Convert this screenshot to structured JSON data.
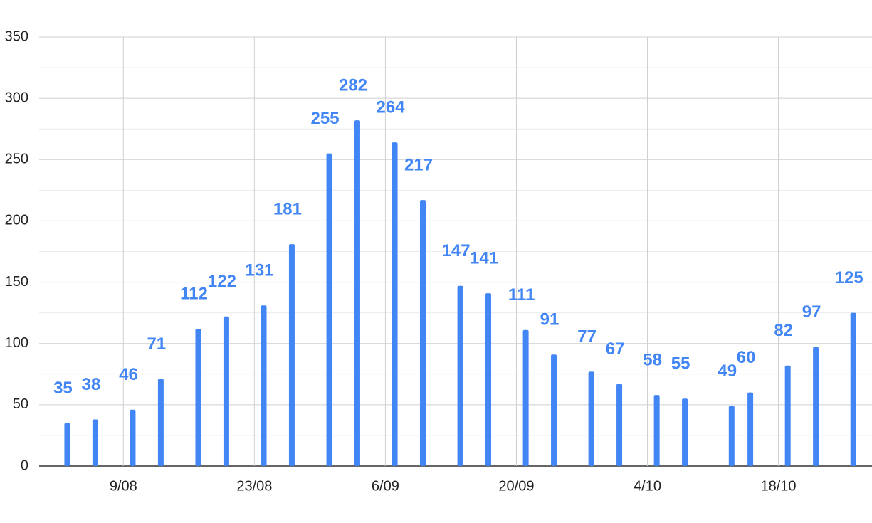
{
  "chart_data": {
    "type": "bar",
    "x": [
      "3/08",
      "6/08",
      "10/08",
      "13/08",
      "17/08",
      "20/08",
      "24/08",
      "27/08",
      "31/08",
      "3/09",
      "7/09",
      "10/09",
      "14/09",
      "17/09",
      "21/09",
      "24/09",
      "28/09",
      "1/10",
      "5/10",
      "8/10",
      "13/10",
      "15/10",
      "19/10",
      "22/10",
      "26/10"
    ],
    "values": [
      35,
      38,
      46,
      71,
      112,
      122,
      131,
      181,
      255,
      282,
      264,
      217,
      147,
      141,
      111,
      91,
      77,
      67,
      58,
      55,
      49,
      60,
      82,
      97,
      125
    ],
    "color": "#4285f4",
    "xlim": [
      "31/07",
      "28/10"
    ],
    "xticks": [
      "9/08",
      "23/08",
      "6/09",
      "20/09",
      "4/10",
      "18/10"
    ],
    "ylim": [
      0,
      350
    ],
    "yticks": [
      0,
      50,
      100,
      150,
      200,
      250,
      300,
      350
    ],
    "grid": true,
    "minor_grid": true
  }
}
